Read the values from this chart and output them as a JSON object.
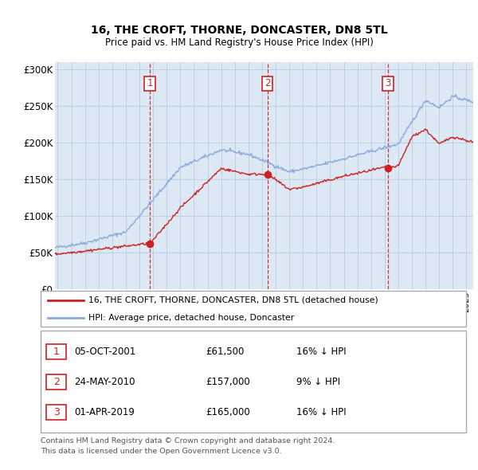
{
  "title": "16, THE CROFT, THORNE, DONCASTER, DN8 5TL",
  "subtitle": "Price paid vs. HM Land Registry's House Price Index (HPI)",
  "ylim": [
    0,
    310000
  ],
  "yticks": [
    0,
    50000,
    100000,
    150000,
    200000,
    250000,
    300000
  ],
  "ytick_labels": [
    "£0",
    "£50K",
    "£100K",
    "£150K",
    "£200K",
    "£250K",
    "£300K"
  ],
  "red_line_color": "#cc2222",
  "blue_line_color": "#88aadd",
  "plot_bg_color": "#dde8f5",
  "grid_color": "#bbcce0",
  "vline_color": "#cc2222",
  "sale1": {
    "date_num": 2001.76,
    "price": 61500,
    "label": "1"
  },
  "sale2": {
    "date_num": 2010.39,
    "price": 157000,
    "label": "2"
  },
  "sale3": {
    "date_num": 2019.25,
    "price": 165000,
    "label": "3"
  },
  "legend_red_label": "16, THE CROFT, THORNE, DONCASTER, DN8 5TL (detached house)",
  "legend_blue_label": "HPI: Average price, detached house, Doncaster",
  "table_rows": [
    {
      "num": "1",
      "date": "05-OCT-2001",
      "price": "£61,500",
      "hpi": "16% ↓ HPI"
    },
    {
      "num": "2",
      "date": "24-MAY-2010",
      "price": "£157,000",
      "hpi": "9% ↓ HPI"
    },
    {
      "num": "3",
      "date": "01-APR-2019",
      "price": "£165,000",
      "hpi": "16% ↓ HPI"
    }
  ],
  "footnote1": "Contains HM Land Registry data © Crown copyright and database right 2024.",
  "footnote2": "This data is licensed under the Open Government Licence v3.0.",
  "xmin": 1994.8,
  "xmax": 2025.5
}
